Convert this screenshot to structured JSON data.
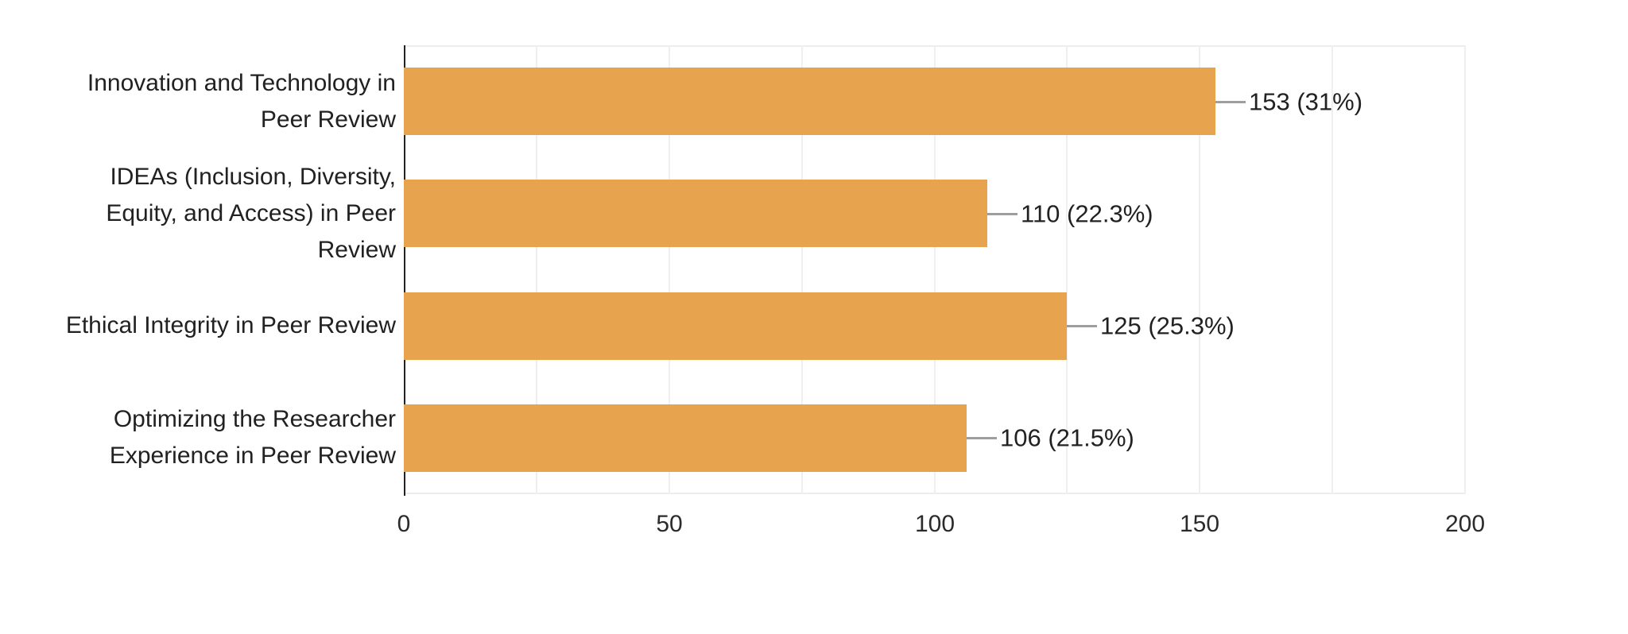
{
  "chart_data": {
    "type": "bar",
    "orientation": "horizontal",
    "title": "",
    "xlabel": "",
    "ylabel": "",
    "categories": [
      "Innovation and Technology in Peer Review",
      "IDEAs (Inclusion, Diversity, Equity, and Access) in Peer Review",
      "Ethical Integrity in Peer Review",
      "Optimizing the Researcher Experience in Peer Review"
    ],
    "category_lines": [
      [
        "Innovation and Technology in",
        "Peer Review"
      ],
      [
        "IDEAs (Inclusion, Diversity,",
        "Equity, and Access) in Peer",
        "Review"
      ],
      [
        "Ethical Integrity in Peer Review"
      ],
      [
        "Optimizing the Researcher",
        "Experience in Peer Review"
      ]
    ],
    "values": [
      153,
      110,
      125,
      106
    ],
    "value_labels": [
      "153 (31%)",
      "110 (22.3%)",
      "125 (25.3%)",
      "106 (21.5%)"
    ],
    "percentages": [
      31,
      22.3,
      25.3,
      21.5
    ],
    "xlim": [
      0,
      200
    ],
    "x_ticks": [
      0,
      50,
      100,
      150,
      200
    ],
    "grid_interval": 25,
    "grid": "vertical-light",
    "legend": "none",
    "bar_color": "#E8A34E",
    "leader_line_color": "#9E9E9E",
    "grid_color": "#EFEFEF",
    "axis_line_color": "#222222",
    "text_color": "#212121",
    "background_color": "#FFFFFF"
  }
}
